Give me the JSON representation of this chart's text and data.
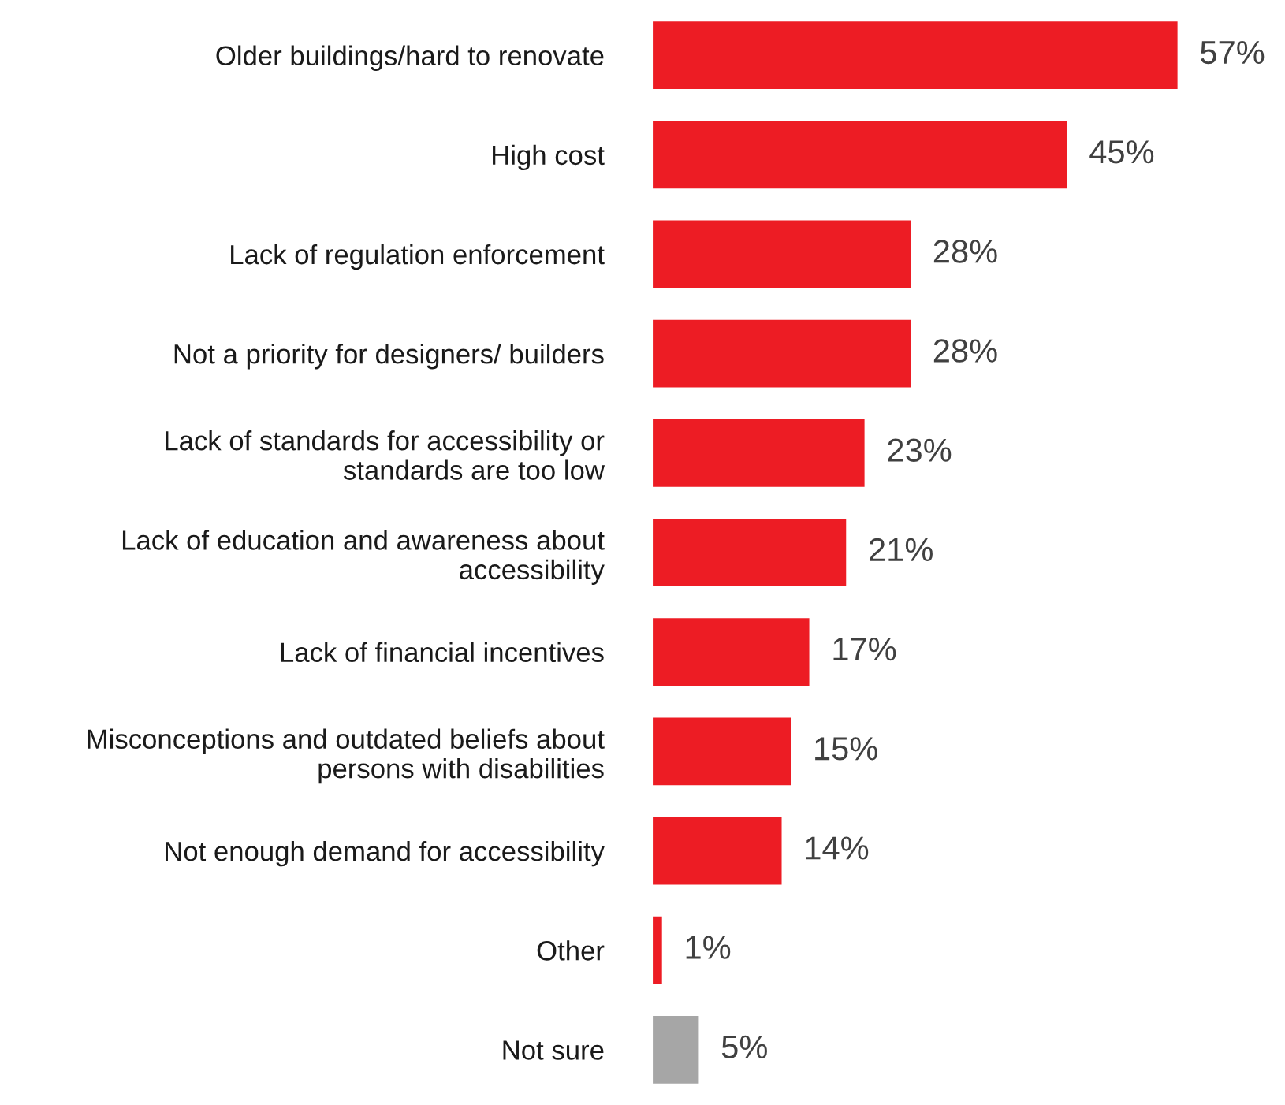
{
  "chart_data": {
    "type": "bar",
    "orientation": "horizontal",
    "categories": [
      "Older buildings/hard to renovate",
      "High cost",
      "Lack of regulation enforcement",
      "Not a priority for designers/ builders",
      "Lack of standards for accessibility or\nstandards are too low",
      "Lack of education and awareness about\naccessibility",
      "Lack of financial incentives",
      "Misconceptions and outdated beliefs about\npersons with disabilities",
      "Not enough demand for accessibility",
      "Other",
      "Not sure"
    ],
    "values": [
      57,
      45,
      28,
      28,
      23,
      21,
      17,
      15,
      14,
      1,
      5
    ],
    "colors": [
      "#ed1c24",
      "#ed1c24",
      "#ed1c24",
      "#ed1c24",
      "#ed1c24",
      "#ed1c24",
      "#ed1c24",
      "#ed1c24",
      "#ed1c24",
      "#ed1c24",
      "#a6a6a6"
    ],
    "value_labels": [
      "57%",
      "45%",
      "28%",
      "28%",
      "23%",
      "21%",
      "17%",
      "15%",
      "14%",
      "1%",
      "5%"
    ],
    "grid": false,
    "legend": false
  }
}
